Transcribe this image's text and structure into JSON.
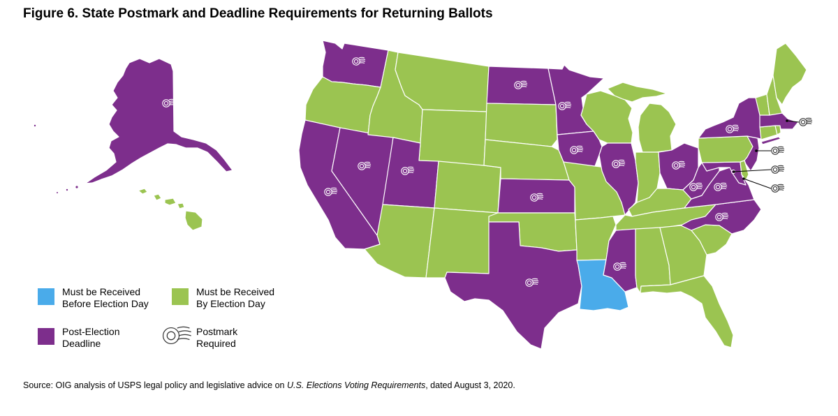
{
  "title": "Figure 6. State Postmark and Deadline Requirements for Returning Ballots",
  "colors": {
    "before_election_day": "#4aabea",
    "by_election_day": "#9bc451",
    "post_election": "#7d2e8c"
  },
  "legend": {
    "before": {
      "line1": "Must be Received",
      "line2": "Before Election Day",
      "color": "#4aabea"
    },
    "by": {
      "line1": "Must be Received",
      "line2": "By Election Day",
      "color": "#9bc451"
    },
    "post": {
      "line1": "Post-Election",
      "line2": "Deadline",
      "color": "#7d2e8c"
    },
    "postmark": {
      "line1": "Postmark",
      "line2": "Required",
      "icon": "postmark-icon"
    }
  },
  "source": {
    "prefix": "Source: OIG analysis of USPS legal policy and legislative advice on ",
    "italic": "U.S. Elections Voting Requirements",
    "suffix": ", dated August 3, 2020."
  },
  "states": [
    {
      "id": "AK",
      "category": "post_election",
      "postmark": true
    },
    {
      "id": "HI",
      "category": "by_election_day",
      "postmark": false
    },
    {
      "id": "WA",
      "category": "post_election",
      "postmark": true
    },
    {
      "id": "OR",
      "category": "by_election_day",
      "postmark": false
    },
    {
      "id": "CA",
      "category": "post_election",
      "postmark": true
    },
    {
      "id": "NV",
      "category": "post_election",
      "postmark": true
    },
    {
      "id": "ID",
      "category": "by_election_day",
      "postmark": false
    },
    {
      "id": "MT",
      "category": "by_election_day",
      "postmark": false
    },
    {
      "id": "WY",
      "category": "by_election_day",
      "postmark": false
    },
    {
      "id": "UT",
      "category": "post_election",
      "postmark": true
    },
    {
      "id": "AZ",
      "category": "by_election_day",
      "postmark": false
    },
    {
      "id": "CO",
      "category": "by_election_day",
      "postmark": false
    },
    {
      "id": "NM",
      "category": "by_election_day",
      "postmark": false
    },
    {
      "id": "ND",
      "category": "post_election",
      "postmark": true
    },
    {
      "id": "SD",
      "category": "by_election_day",
      "postmark": false
    },
    {
      "id": "NE",
      "category": "by_election_day",
      "postmark": false
    },
    {
      "id": "KS",
      "category": "post_election",
      "postmark": true
    },
    {
      "id": "OK",
      "category": "by_election_day",
      "postmark": false
    },
    {
      "id": "TX",
      "category": "post_election",
      "postmark": true
    },
    {
      "id": "MN",
      "category": "post_election",
      "postmark": true
    },
    {
      "id": "IA",
      "category": "post_election",
      "postmark": true
    },
    {
      "id": "MO",
      "category": "by_election_day",
      "postmark": false
    },
    {
      "id": "AR",
      "category": "by_election_day",
      "postmark": false
    },
    {
      "id": "LA",
      "category": "before_election_day",
      "postmark": false
    },
    {
      "id": "WI",
      "category": "by_election_day",
      "postmark": false
    },
    {
      "id": "IL",
      "category": "post_election",
      "postmark": true
    },
    {
      "id": "MS",
      "category": "post_election",
      "postmark": true
    },
    {
      "id": "MI",
      "category": "by_election_day",
      "postmark": false
    },
    {
      "id": "IN",
      "category": "by_election_day",
      "postmark": false
    },
    {
      "id": "KY",
      "category": "by_election_day",
      "postmark": false
    },
    {
      "id": "TN",
      "category": "by_election_day",
      "postmark": false
    },
    {
      "id": "AL",
      "category": "by_election_day",
      "postmark": false
    },
    {
      "id": "OH",
      "category": "post_election",
      "postmark": true
    },
    {
      "id": "WV",
      "category": "post_election",
      "postmark": true
    },
    {
      "id": "VA",
      "category": "post_election",
      "postmark": true
    },
    {
      "id": "NC",
      "category": "post_election",
      "postmark": true
    },
    {
      "id": "SC",
      "category": "by_election_day",
      "postmark": false
    },
    {
      "id": "GA",
      "category": "by_election_day",
      "postmark": false
    },
    {
      "id": "FL",
      "category": "by_election_day",
      "postmark": false
    },
    {
      "id": "PA",
      "category": "by_election_day",
      "postmark": false
    },
    {
      "id": "NY",
      "category": "post_election",
      "postmark": true
    },
    {
      "id": "NJ",
      "category": "post_election",
      "postmark": true
    },
    {
      "id": "DE",
      "category": "by_election_day",
      "postmark": false
    },
    {
      "id": "MD",
      "category": "post_election",
      "postmark": true
    },
    {
      "id": "DC",
      "category": "post_election",
      "postmark": true
    },
    {
      "id": "CT",
      "category": "by_election_day",
      "postmark": false
    },
    {
      "id": "RI",
      "category": "by_election_day",
      "postmark": false
    },
    {
      "id": "MA",
      "category": "post_election",
      "postmark": true
    },
    {
      "id": "VT",
      "category": "by_election_day",
      "postmark": false
    },
    {
      "id": "NH",
      "category": "by_election_day",
      "postmark": false
    },
    {
      "id": "ME",
      "category": "by_election_day",
      "postmark": false
    }
  ]
}
